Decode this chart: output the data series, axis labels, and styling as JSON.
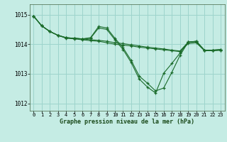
{
  "title": "Graphe pression niveau de la mer (hPa)",
  "background_color": "#c5ece4",
  "grid_color": "#9dd4cc",
  "line_color": "#1a6b2a",
  "xlim": [
    -0.5,
    23.5
  ],
  "ylim": [
    1011.75,
    1015.35
  ],
  "yticks": [
    1012,
    1013,
    1014,
    1015
  ],
  "xticks": [
    0,
    1,
    2,
    3,
    4,
    5,
    6,
    7,
    8,
    9,
    10,
    11,
    12,
    13,
    14,
    15,
    16,
    17,
    18,
    19,
    20,
    21,
    22,
    23
  ],
  "line1": [
    1014.95,
    1014.62,
    1014.43,
    1014.3,
    1014.22,
    1014.2,
    1014.18,
    1014.15,
    1014.13,
    1014.1,
    1014.05,
    1014.02,
    1013.98,
    1013.94,
    1013.9,
    1013.87,
    1013.84,
    1013.8,
    1013.77,
    1014.07,
    1014.08,
    1013.8,
    1013.8,
    1013.82
  ],
  "line2": [
    1014.95,
    1014.62,
    1014.43,
    1014.3,
    1014.22,
    1014.2,
    1014.18,
    1014.22,
    1014.6,
    1014.55,
    1014.2,
    1013.88,
    1013.45,
    1012.92,
    1012.68,
    1012.42,
    1012.52,
    1013.05,
    1013.62,
    1014.07,
    1014.1,
    1013.8,
    1013.8,
    1013.82
  ],
  "line3": [
    1014.95,
    1014.62,
    1014.43,
    1014.3,
    1014.22,
    1014.2,
    1014.18,
    1014.2,
    1014.55,
    1014.5,
    1014.15,
    1013.82,
    1013.38,
    1012.82,
    1012.55,
    1012.35,
    1013.02,
    1013.35,
    1013.7,
    1014.07,
    1014.1,
    1013.8,
    1013.78,
    1013.8
  ],
  "line4": [
    1014.95,
    1014.62,
    1014.43,
    1014.3,
    1014.2,
    1014.18,
    1014.15,
    1014.12,
    1014.1,
    1014.05,
    1014.0,
    1013.97,
    1013.94,
    1013.9,
    1013.87,
    1013.84,
    1013.81,
    1013.78,
    1013.75,
    1014.02,
    1014.05,
    1013.78,
    1013.78,
    1013.8
  ]
}
